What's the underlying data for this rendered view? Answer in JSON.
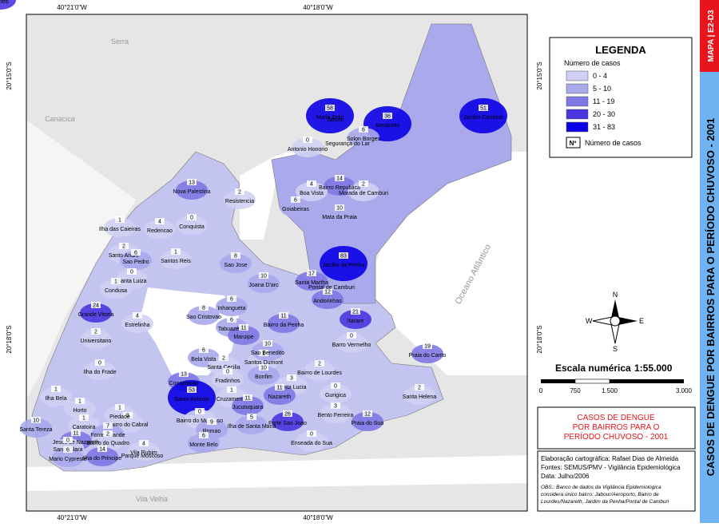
{
  "coordinates": {
    "top": [
      "40°21'0\"W",
      "40°18'0\"W"
    ],
    "bottom": [
      "40°21'0\"W",
      "40°18'0\"W"
    ],
    "left": [
      "20°15'0\"S",
      "20°18'0\"S"
    ],
    "right": [
      "20°15'0\"S",
      "20°18'0\"S"
    ]
  },
  "places": [
    "Serra",
    "Canacica",
    "Vila Velha",
    "Oceano Atlântico"
  ],
  "labels": [
    "Jabour",
    "Segurança do Lar",
    "Pontal de Camburi",
    "Parque Moscoso"
  ],
  "legend": {
    "title": "LEGENDA",
    "subtitle": "Número de casos",
    "classes": [
      {
        "label": "0 - 4",
        "color": "#d0d0f4"
      },
      {
        "label": "5 - 10",
        "color": "#a9a9ec"
      },
      {
        "label": "11 - 19",
        "color": "#7f78e4"
      },
      {
        "label": "20 - 30",
        "color": "#4a36e0"
      },
      {
        "label": "31 - 83",
        "color": "#0a00e6"
      }
    ],
    "symbol": "Nº",
    "symbol_label": "Número de casos"
  },
  "compass": {
    "n": "N",
    "s": "S",
    "e": "E",
    "w": "W"
  },
  "scale": {
    "title": "Escala numérica",
    "ratio": "1:55.000",
    "ticks": [
      "0",
      "750",
      "1.500",
      "3.000"
    ]
  },
  "title_box": [
    "CASOS DE DENGUE",
    "POR BAIRROS PARA O",
    "PERÍODO CHUVOSO - 2001"
  ],
  "credits": [
    "Elaboração cartográfica: Rafael Dias de Almeida",
    "Fontes: SEMUS/PMV - Vigilância Epidemiológica",
    "Data: Julho/2006"
  ],
  "obs": [
    "OBS.: Banco de dados da Vigilância Epidemiológica",
    "considera único bairro: Jabour/Aeroporto, Bairro de",
    "Lourdes/Nazareth, Jardim da Penha/Pontal de Camburi"
  ],
  "banner": {
    "code": "MAPA | E2-D3",
    "title": "CASOS DE DENGUE POR BAIRROS  PARA O PERÍODO CHUVOSO - 2001"
  },
  "neighborhoods": [
    {
      "name": "Maria Ortiz",
      "cases": 58
    },
    {
      "name": "Aeroporto",
      "cases": 36
    },
    {
      "name": "Jardim Camburi",
      "cases": 51
    },
    {
      "name": "Solon Borges",
      "cases": 6
    },
    {
      "name": "Antonio Honorio",
      "cases": 0
    },
    {
      "name": "Bairro Republica",
      "cases": 14
    },
    {
      "name": "Boa Vista",
      "cases": 4
    },
    {
      "name": "Morada de Camburi",
      "cases": 2
    },
    {
      "name": "Goiabeiras",
      "cases": 6
    },
    {
      "name": "Mata da Praia",
      "cases": 10
    },
    {
      "name": "Jardim da Penha",
      "cases": 83
    },
    {
      "name": "Nova Palestina",
      "cases": 13
    },
    {
      "name": "Resistencia",
      "cases": 2
    },
    {
      "name": "Ilha das Caieiras",
      "cases": 1
    },
    {
      "name": "Redencao",
      "cases": 4
    },
    {
      "name": "Conquista",
      "cases": 0
    },
    {
      "name": "Santo Andre",
      "cases": 2
    },
    {
      "name": "Sao Pedro",
      "cases": 6
    },
    {
      "name": "Santos Reis",
      "cases": 1
    },
    {
      "name": "Sao Jose",
      "cases": 8
    },
    {
      "name": "Joana D'arc",
      "cases": 10
    },
    {
      "name": "Santa Martha",
      "cases": 17
    },
    {
      "name": "Andorinhas",
      "cases": 12
    },
    {
      "name": "Santa Luiza",
      "cases": 0
    },
    {
      "name": "Condusa",
      "cases": 1
    },
    {
      "name": "Grande Vitoria",
      "cases": 24
    },
    {
      "name": "Estrelinha",
      "cases": 4
    },
    {
      "name": "Universitario",
      "cases": 2
    },
    {
      "name": "Inhangueta",
      "cases": 6
    },
    {
      "name": "Sao Cristovao",
      "cases": 8
    },
    {
      "name": "Tabuazeiro",
      "cases": 6
    },
    {
      "name": "Maruipe",
      "cases": 11
    },
    {
      "name": "Bairro da Penha",
      "cases": 11
    },
    {
      "name": "Itarare",
      "cases": 21
    },
    {
      "name": "Barro Vermelho",
      "cases": 0
    },
    {
      "name": "Praia do Canto",
      "cases": 19
    },
    {
      "name": "Ilha do Frade",
      "cases": 0
    },
    {
      "name": "Bela Vista",
      "cases": 6
    },
    {
      "name": "Santa Cecilia",
      "cases": 2
    },
    {
      "name": "Santos Dumont",
      "cases": 1
    },
    {
      "name": "Sao Benedito",
      "cases": 10
    },
    {
      "name": "Bonfim",
      "cases": 10
    },
    {
      "name": "Consolacao",
      "cases": 13
    },
    {
      "name": "Fradinhos",
      "cases": 0
    },
    {
      "name": "Bairro de Lourdes",
      "cases": 2
    },
    {
      "name": "Santa Lucia",
      "cases": 3
    },
    {
      "name": "Gurigica",
      "cases": 0
    },
    {
      "name": "Santa Helena",
      "cases": 2
    },
    {
      "name": "Ilha Bela",
      "cases": 1
    },
    {
      "name": "Santo Antonio",
      "cases": 53
    },
    {
      "name": "Cruzamento",
      "cases": 1
    },
    {
      "name": "Jucutuquara",
      "cases": 11
    },
    {
      "name": "Nazareth",
      "cases": 11
    },
    {
      "name": "Horto",
      "cases": 1
    },
    {
      "name": "Santa Tereza",
      "cases": 10
    },
    {
      "name": "Caratoira",
      "cases": 1
    },
    {
      "name": "Bairro do Cabral",
      "cases": 3
    },
    {
      "name": "Piedade",
      "cases": 1
    },
    {
      "name": "Fonte Grande",
      "cases": 7
    },
    {
      "name": "Bairro do Moscoso",
      "cases": 0
    },
    {
      "name": "Romao",
      "cases": 9
    },
    {
      "name": "Ilha de Santa Maria",
      "cases": 5
    },
    {
      "name": "Monte Belo",
      "cases": 6
    },
    {
      "name": "Forte Sao Joao",
      "cases": 26
    },
    {
      "name": "Bento Ferreira",
      "cases": 3
    },
    {
      "name": "Praia do Sua",
      "cases": 12
    },
    {
      "name": "Enseada do Sua",
      "cases": 0
    },
    {
      "name": "Jesus de Nazareth",
      "cases": 11
    },
    {
      "name": "Bairro do Quadro",
      "cases": 2
    },
    {
      "name": "Santa Clara",
      "cases": 0
    },
    {
      "name": "Mario Cypreste",
      "cases": 6
    },
    {
      "name": "Ilha do Principe",
      "cases": 14
    },
    {
      "name": "Vila Rubim",
      "cases": 4
    },
    {
      "name": "Centro",
      "cases": 30
    }
  ]
}
